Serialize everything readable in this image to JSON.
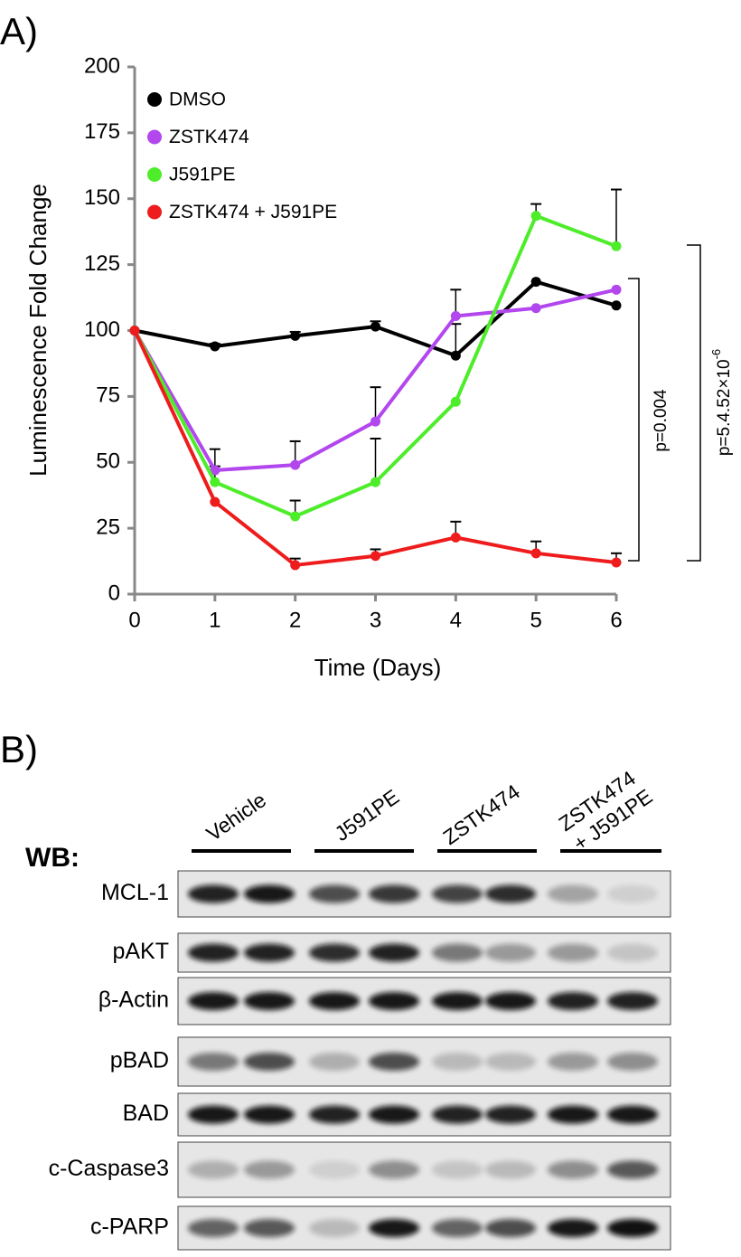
{
  "panel_a_label": "A)",
  "chart_data": {
    "type": "line",
    "y_label": "Luminescence Fold Change",
    "x_label": "Time (Days)",
    "x": [
      0,
      1,
      2,
      3,
      4,
      5,
      6
    ],
    "xlim": [
      0,
      6
    ],
    "xticks": [
      0,
      1,
      2,
      3,
      4,
      5,
      6
    ],
    "ylim": [
      0,
      200
    ],
    "yticks": [
      0,
      25,
      50,
      75,
      100,
      125,
      150,
      175,
      200
    ],
    "legend": "upper left",
    "grid": false,
    "series": [
      {
        "name": "DMSO",
        "color": "#000000",
        "values": [
          100,
          94,
          98,
          101.5,
          90.5,
          118.5,
          109.5
        ],
        "errors": [
          null,
          1,
          1.5,
          2,
          12,
          null,
          null
        ]
      },
      {
        "name": "ZSTK474",
        "color": "#b347ee",
        "values": [
          100,
          47,
          49,
          65.5,
          105.5,
          108.5,
          115.5
        ],
        "errors": [
          null,
          8,
          9,
          13,
          10,
          null,
          null
        ]
      },
      {
        "name": "J591PE",
        "color": "#4ded2a",
        "values": [
          100,
          42.5,
          29.5,
          42.5,
          73,
          143.5,
          132
        ],
        "errors": [
          null,
          6,
          6,
          16.5,
          null,
          4.5,
          21.5
        ]
      },
      {
        "name": "ZSTK474 + J591PE",
        "color": "#ee1c1c",
        "values": [
          100,
          35,
          11,
          14.5,
          21.5,
          15.5,
          12
        ],
        "errors": [
          null,
          null,
          2.5,
          2.5,
          6,
          4.5,
          3.5
        ]
      }
    ],
    "annotations": [
      {
        "text": "p=0.004"
      },
      {
        "text": "p=5.4.52×10",
        "superscript": "-6"
      }
    ]
  },
  "panel_b": {
    "label": "B)",
    "wb_label": "WB:",
    "groups": [
      {
        "lines": [
          "Vehicle"
        ]
      },
      {
        "lines": [
          "J591PE"
        ]
      },
      {
        "lines": [
          "ZSTK474"
        ]
      },
      {
        "lines": [
          "ZSTK474",
          "+ J591PE"
        ]
      }
    ],
    "rows": [
      "MCL-1",
      "pAKT",
      "β-Actin",
      "pBAD",
      "BAD",
      "c-Caspase3",
      "c-PARP"
    ]
  }
}
